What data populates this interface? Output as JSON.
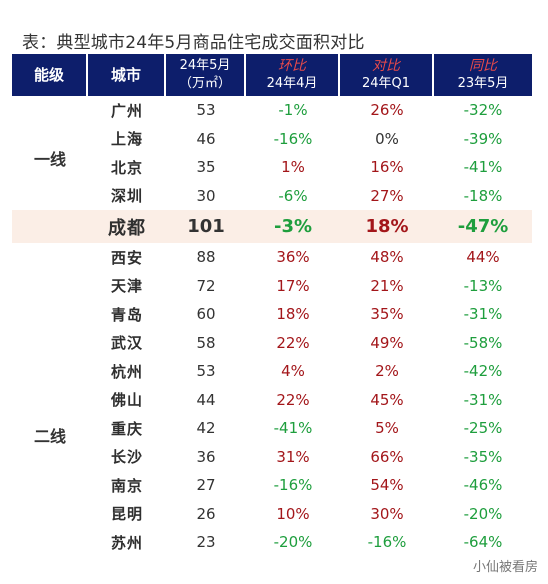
{
  "title": "表：典型城市24年5月商品住宅成交面积对比",
  "header": {
    "level": "能级",
    "city": "城市",
    "area_line1": "24年5月",
    "area_line2": "（万㎡）",
    "mom_line1": "环比",
    "mom_line2": "24年4月",
    "q1_line1": "对比",
    "q1_line2": "24年Q1",
    "yoy_line1": "同比",
    "yoy_line2": "23年5月"
  },
  "levels": {
    "tier1": "一线",
    "tier2": "二线"
  },
  "rows": [
    {
      "city": "广州",
      "area": "53",
      "mom": "-1%",
      "q1": "26%",
      "yoy": "-32%",
      "tier": 1
    },
    {
      "city": "上海",
      "area": "46",
      "mom": "-16%",
      "q1": "0%",
      "yoy": "-39%",
      "tier": 1
    },
    {
      "city": "北京",
      "area": "35",
      "mom": "1%",
      "q1": "16%",
      "yoy": "-41%",
      "tier": 1
    },
    {
      "city": "深圳",
      "area": "30",
      "mom": "-6%",
      "q1": "27%",
      "yoy": "-18%",
      "tier": 1
    },
    {
      "city": "成都",
      "area": "101",
      "mom": "-3%",
      "q1": "18%",
      "yoy": "-47%",
      "tier": 2,
      "highlight": true
    },
    {
      "city": "西安",
      "area": "88",
      "mom": "36%",
      "q1": "48%",
      "yoy": "44%",
      "tier": 2
    },
    {
      "city": "天津",
      "area": "72",
      "mom": "17%",
      "q1": "21%",
      "yoy": "-13%",
      "tier": 2
    },
    {
      "city": "青岛",
      "area": "60",
      "mom": "18%",
      "q1": "35%",
      "yoy": "-31%",
      "tier": 2
    },
    {
      "city": "武汉",
      "area": "58",
      "mom": "22%",
      "q1": "49%",
      "yoy": "-58%",
      "tier": 2
    },
    {
      "city": "杭州",
      "area": "53",
      "mom": "4%",
      "q1": "2%",
      "yoy": "-42%",
      "tier": 2
    },
    {
      "city": "佛山",
      "area": "44",
      "mom": "22%",
      "q1": "45%",
      "yoy": "-31%",
      "tier": 2
    },
    {
      "city": "重庆",
      "area": "42",
      "mom": "-41%",
      "q1": "5%",
      "yoy": "-25%",
      "tier": 2
    },
    {
      "city": "长沙",
      "area": "36",
      "mom": "31%",
      "q1": "66%",
      "yoy": "-35%",
      "tier": 2
    },
    {
      "city": "南京",
      "area": "27",
      "mom": "-16%",
      "q1": "54%",
      "yoy": "-46%",
      "tier": 2
    },
    {
      "city": "昆明",
      "area": "26",
      "mom": "10%",
      "q1": "30%",
      "yoy": "-20%",
      "tier": 2
    },
    {
      "city": "苏州",
      "area": "23",
      "mom": "-20%",
      "q1": "-16%",
      "yoy": "-64%",
      "tier": 2
    }
  ],
  "colors": {
    "header_bg": "#0d1e6b",
    "positive": "#a3161a",
    "negative": "#1e9e3d",
    "highlight_bg": "#fbeee6"
  },
  "watermark": "小仙被看房"
}
